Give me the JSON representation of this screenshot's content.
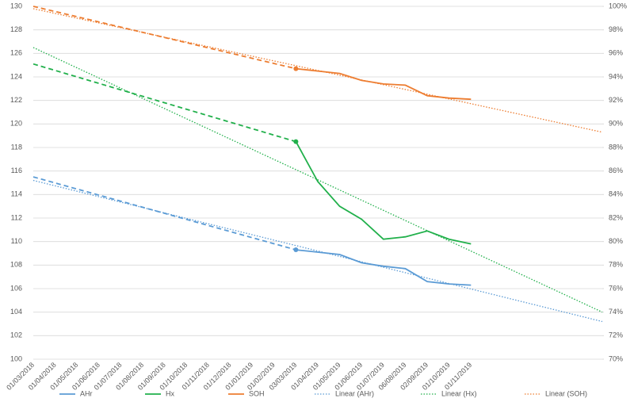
{
  "chart_data": {
    "type": "line",
    "categories": [
      "01/03/2018",
      "01/04/2018",
      "01/05/2018",
      "01/06/2018",
      "01/07/2018",
      "01/08/2018",
      "01/09/2018",
      "01/10/2018",
      "01/11/2018",
      "01/12/2018",
      "01/01/2019",
      "01/02/2019",
      "03/03/2019",
      "01/04/2019",
      "01/05/2019",
      "01/06/2019",
      "01/07/2019",
      "06/08/2019",
      "02/09/2019",
      "01/10/2019",
      "01/11/2019",
      null,
      null,
      null,
      null,
      null,
      null
    ],
    "ylim": [
      100,
      130
    ],
    "yticks": [
      100,
      102,
      104,
      106,
      108,
      110,
      112,
      114,
      116,
      118,
      120,
      122,
      124,
      126,
      128,
      130
    ],
    "y2lim": [
      70,
      100
    ],
    "y2ticks": [
      {
        "value": 70,
        "label": "70%"
      },
      {
        "value": 72,
        "label": "72%"
      },
      {
        "value": 74,
        "label": "74%"
      },
      {
        "value": 76,
        "label": "76%"
      },
      {
        "value": 78,
        "label": "78%"
      },
      {
        "value": 80,
        "label": "80%"
      },
      {
        "value": 82,
        "label": "82%"
      },
      {
        "value": 84,
        "label": "84%"
      },
      {
        "value": 86,
        "label": "86%"
      },
      {
        "value": 88,
        "label": "88%"
      },
      {
        "value": 90,
        "label": "90%"
      },
      {
        "value": 92,
        "label": "92%"
      },
      {
        "value": 94,
        "label": "94%"
      },
      {
        "value": 96,
        "label": "96%"
      },
      {
        "value": 98,
        "label": "98%"
      },
      {
        "value": 100,
        "label": "100%"
      }
    ],
    "grid": true,
    "legend": "bottom",
    "series": [
      {
        "name": "AHr",
        "color": "#5b9bd5",
        "style": "solid",
        "gap_style": "dashed",
        "values": [
          115.5,
          null,
          null,
          null,
          null,
          null,
          null,
          null,
          null,
          null,
          null,
          null,
          109.3,
          109.1,
          108.9,
          108.2,
          107.9,
          107.7,
          106.6,
          106.4,
          106.3,
          null,
          null,
          null,
          null,
          null,
          null
        ]
      },
      {
        "name": "Hx",
        "color": "#21b04b",
        "style": "solid",
        "gap_style": "dashed",
        "values": [
          125.1,
          null,
          null,
          null,
          null,
          null,
          null,
          null,
          null,
          null,
          null,
          null,
          118.5,
          115.1,
          113.0,
          111.9,
          110.2,
          110.4,
          110.9,
          110.2,
          109.8,
          null,
          null,
          null,
          null,
          null,
          null
        ]
      },
      {
        "name": "SOH",
        "color": "#ed7d31",
        "axis": "y2",
        "style": "solid",
        "gap_style": "dashed",
        "values": [
          100,
          null,
          null,
          null,
          null,
          null,
          null,
          null,
          null,
          null,
          null,
          null,
          94.7,
          94.5,
          94.3,
          93.7,
          93.4,
          93.3,
          92.4,
          92.2,
          92.1,
          null,
          null,
          null,
          null,
          null,
          null
        ]
      },
      {
        "name": "Linear (AHr)",
        "color": "#5b9bd5",
        "style": "dotted",
        "gap_style": "dotted",
        "values": [
          115.2,
          null,
          null,
          null,
          null,
          null,
          null,
          null,
          null,
          null,
          null,
          null,
          null,
          null,
          null,
          null,
          null,
          null,
          null,
          null,
          null,
          null,
          null,
          null,
          null,
          null,
          103.2
        ]
      },
      {
        "name": "Linear (Hx)",
        "color": "#21b04b",
        "style": "dotted",
        "gap_style": "dotted",
        "values": [
          126.5,
          null,
          null,
          null,
          null,
          null,
          null,
          null,
          null,
          null,
          null,
          null,
          null,
          null,
          null,
          null,
          null,
          null,
          null,
          null,
          null,
          null,
          null,
          null,
          null,
          null,
          104.0
        ]
      },
      {
        "name": "Linear (SOH)",
        "color": "#ed7d31",
        "axis": "y2",
        "style": "dotted",
        "gap_style": "dotted",
        "values": [
          99.8,
          null,
          null,
          null,
          null,
          null,
          null,
          null,
          null,
          null,
          null,
          null,
          null,
          null,
          null,
          null,
          null,
          null,
          null,
          null,
          null,
          null,
          null,
          null,
          null,
          null,
          89.3
        ]
      }
    ]
  }
}
